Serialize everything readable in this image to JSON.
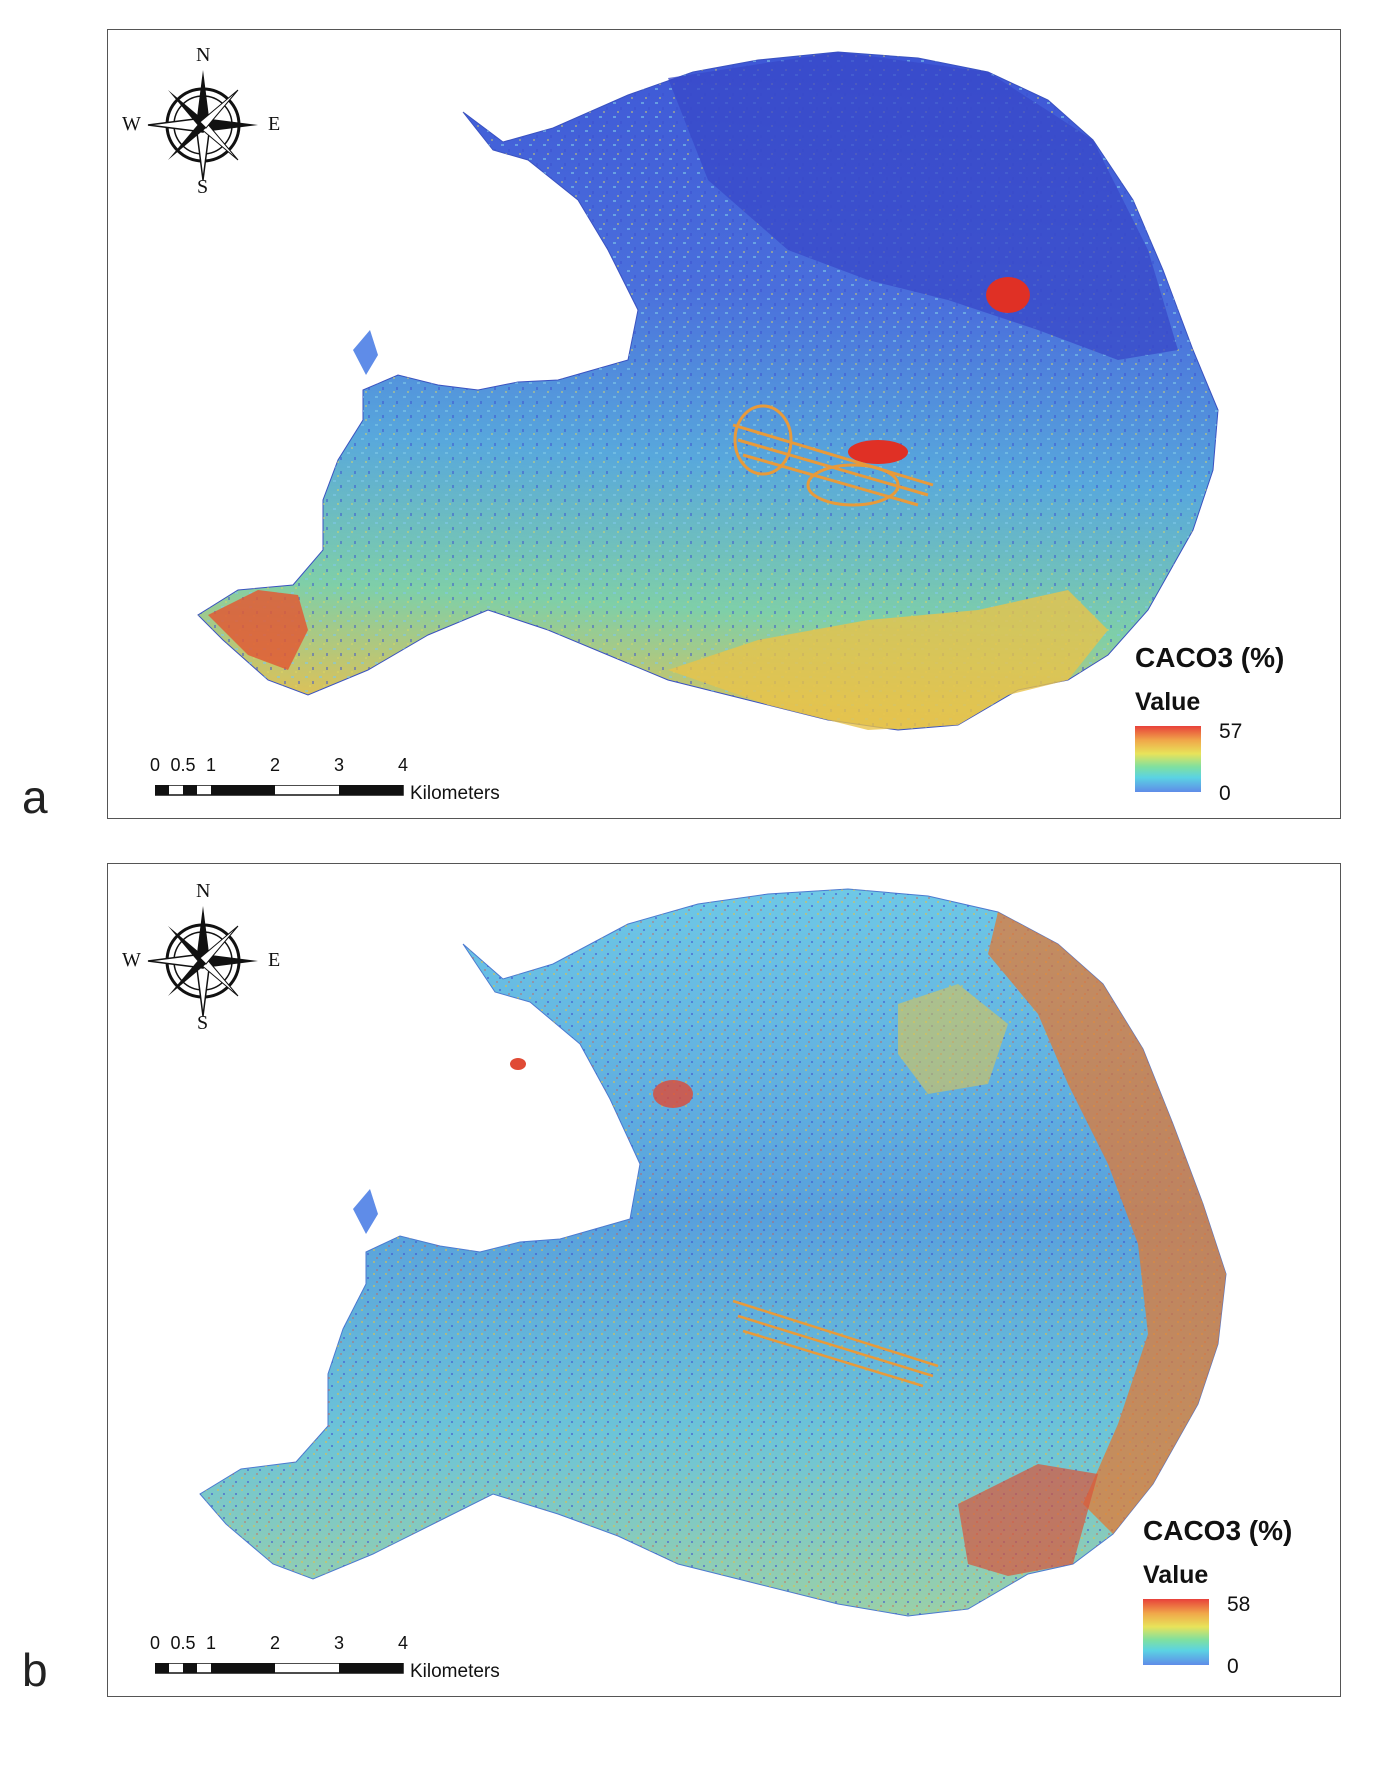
{
  "panels": [
    {
      "letter": "a",
      "legend": {
        "title": "CACO3 (%)",
        "subtitle": "Value",
        "max": "57",
        "min": "0",
        "ramp_colors": [
          "#e8413a",
          "#f0a84a",
          "#e8e35a",
          "#7fe0a0",
          "#5bd3e3",
          "#5f8ce8"
        ]
      },
      "compass": {
        "n": "N",
        "s": "S",
        "e": "E",
        "w": "W"
      },
      "scale": {
        "ticks": [
          "0",
          "0.5",
          "1",
          "2",
          "3",
          "4"
        ],
        "unit": "Kilometers"
      }
    },
    {
      "letter": "b",
      "legend": {
        "title": "CACO3 (%)",
        "subtitle": "Value",
        "max": "58",
        "min": "0",
        "ramp_colors": [
          "#e8413a",
          "#f0a84a",
          "#e8e35a",
          "#7fe0a0",
          "#5bd3e3",
          "#5f8ce8"
        ]
      },
      "compass": {
        "n": "N",
        "s": "S",
        "e": "E",
        "w": "W"
      },
      "scale": {
        "ticks": [
          "0",
          "0.5",
          "1",
          "2",
          "3",
          "4"
        ],
        "unit": "Kilometers"
      }
    }
  ]
}
